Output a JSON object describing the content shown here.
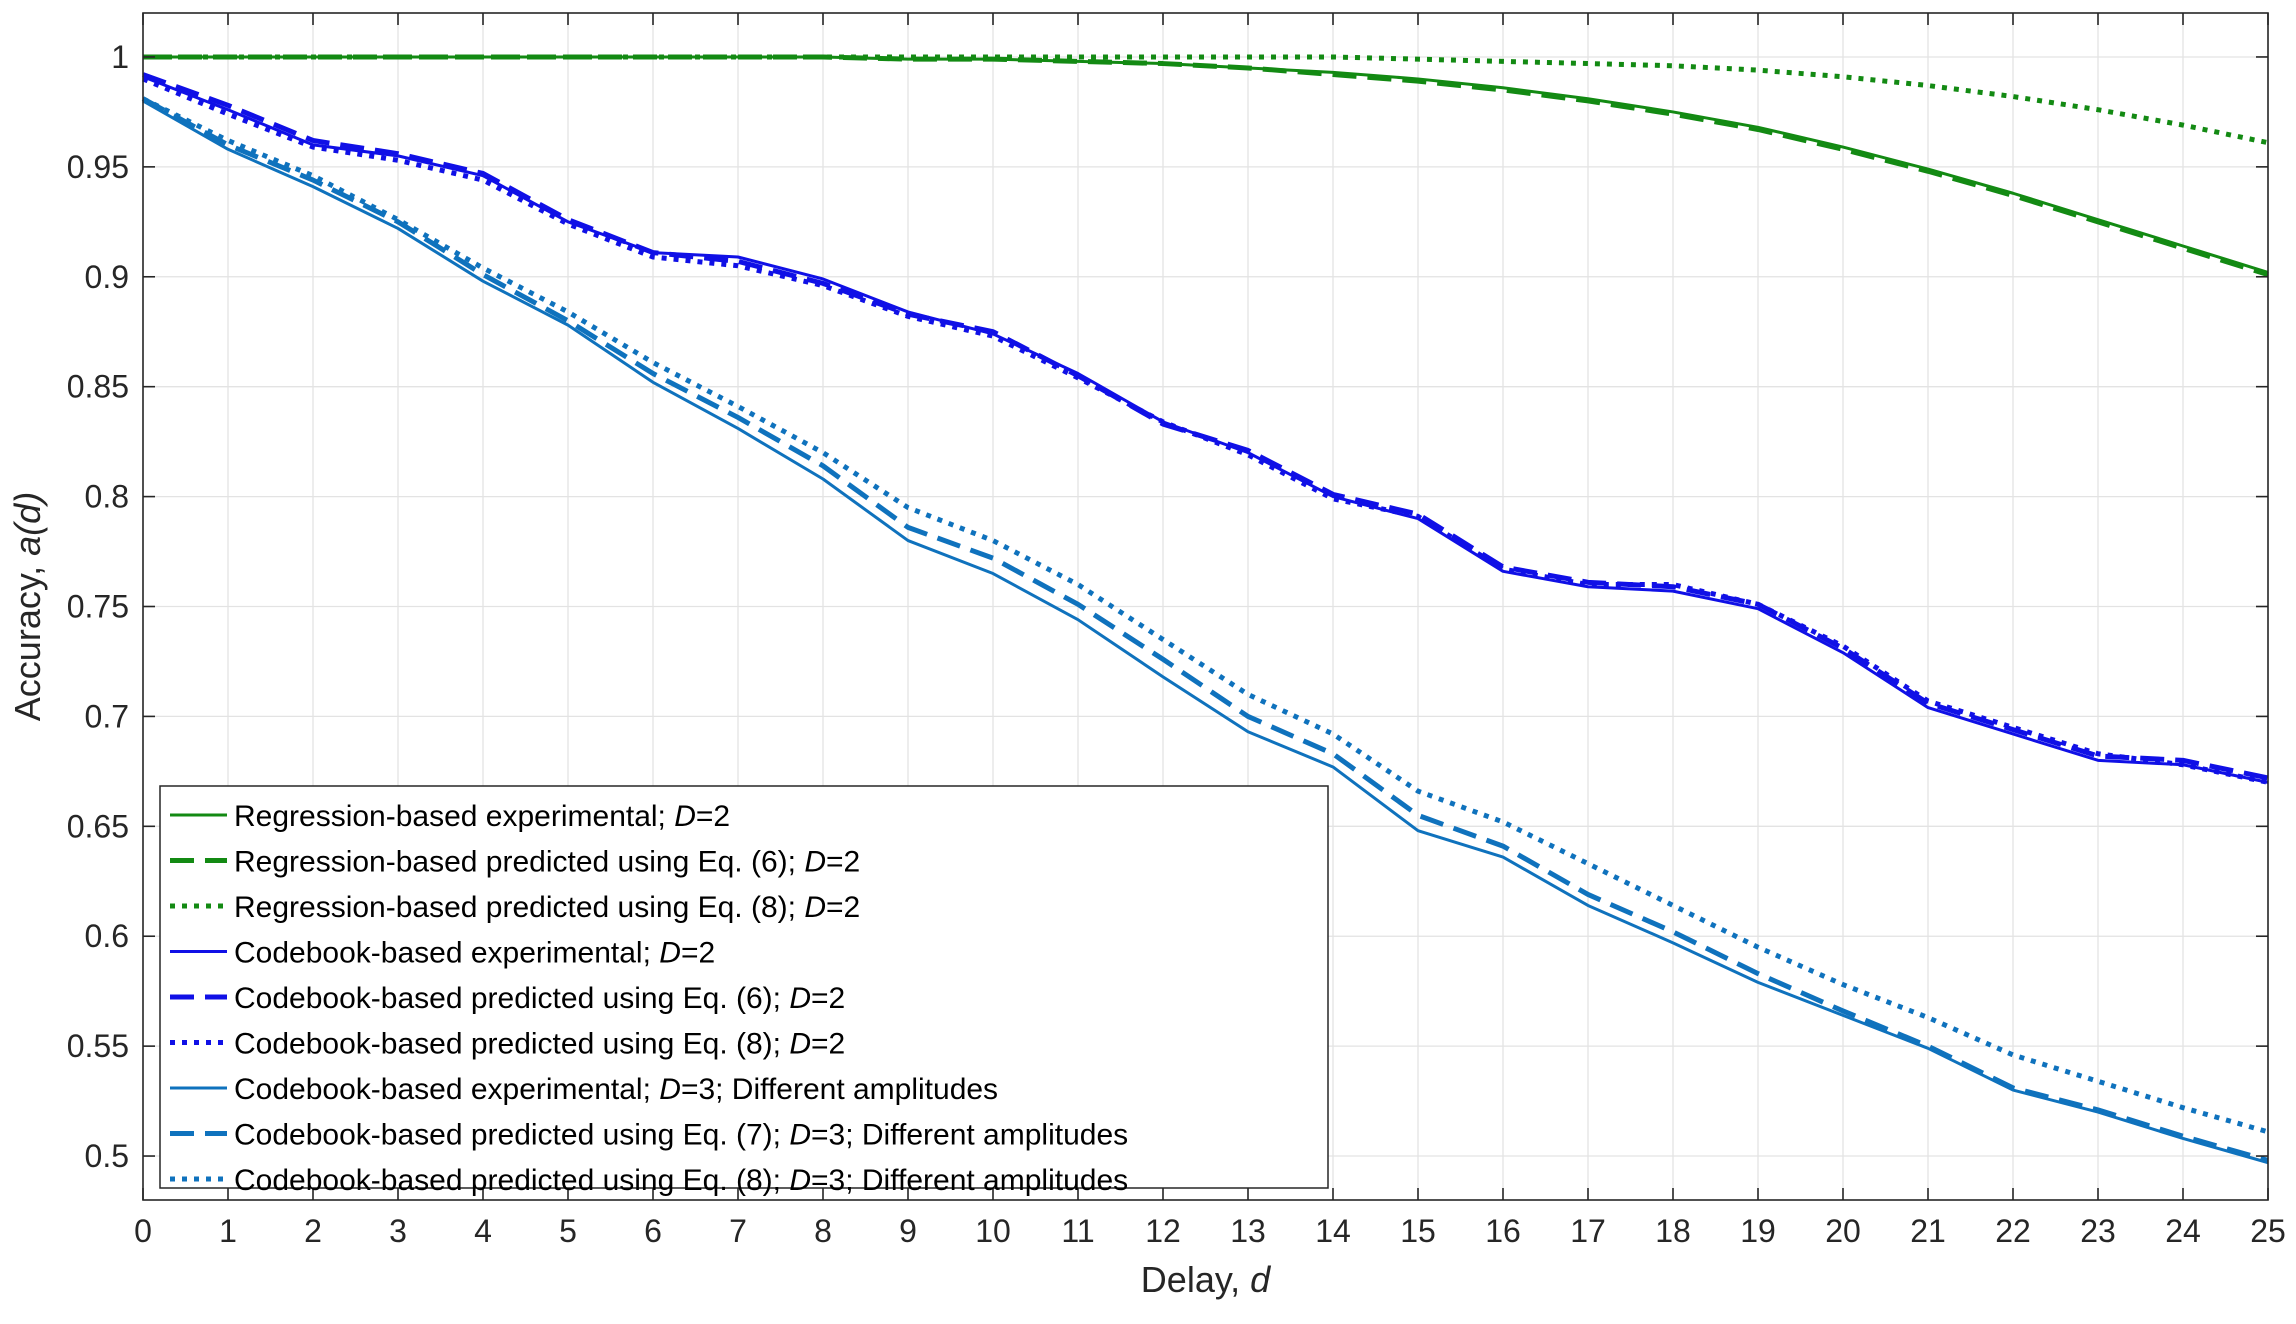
{
  "chart_data": {
    "type": "line",
    "title": "",
    "xlabel_prefix": "Delay, ",
    "xlabel_var": "d",
    "ylabel_prefix": "Accuracy, ",
    "ylabel_var": "a(d)",
    "xlim": [
      0,
      25
    ],
    "ylim": [
      0.48,
      1.02
    ],
    "xticks": [
      0,
      1,
      2,
      3,
      4,
      5,
      6,
      7,
      8,
      9,
      10,
      11,
      12,
      13,
      14,
      15,
      16,
      17,
      18,
      19,
      20,
      21,
      22,
      23,
      24,
      25
    ],
    "xtick_labels": [
      "0",
      "1",
      "2",
      "3",
      "4",
      "5",
      "6",
      "7",
      "8",
      "9",
      "10",
      "11",
      "12",
      "13",
      "14",
      "15",
      "16",
      "17",
      "18",
      "19",
      "20",
      "21",
      "22",
      "23",
      "24",
      "25"
    ],
    "yticks": [
      0.5,
      0.55,
      0.6,
      0.65,
      0.7,
      0.75,
      0.8,
      0.85,
      0.9,
      0.95,
      1
    ],
    "ytick_labels": [
      "0.5",
      "0.55",
      "0.6",
      "0.65",
      "0.7",
      "0.75",
      "0.8",
      "0.85",
      "0.9",
      "0.95",
      "1"
    ],
    "grid": true,
    "legend_position": "bottom-left",
    "x": [
      0,
      1,
      2,
      3,
      4,
      5,
      6,
      7,
      8,
      9,
      10,
      11,
      12,
      13,
      14,
      15,
      16,
      17,
      18,
      19,
      20,
      21,
      22,
      23,
      24,
      25
    ],
    "series": [
      {
        "name": "Regression-based experimental; D=2",
        "legend_parts": [
          "Regression-based experimental; ",
          "D",
          "=2"
        ],
        "color": "#138a13",
        "dash": "solid",
        "width": 3,
        "values": [
          1.0,
          1.0,
          1.0,
          1.0,
          1.0,
          1.0,
          1.0,
          1.0,
          1.0,
          0.999,
          0.999,
          0.998,
          0.997,
          0.995,
          0.993,
          0.99,
          0.986,
          0.981,
          0.975,
          0.968,
          0.959,
          0.949,
          0.938,
          0.926,
          0.914,
          0.902
        ]
      },
      {
        "name": "Regression-based predicted using Eq. (6); D=2",
        "legend_parts": [
          "Regression-based predicted using Eq. (6); ",
          "D",
          "=2"
        ],
        "color": "#138a13",
        "dash": "dash",
        "width": 5,
        "values": [
          1.0,
          1.0,
          1.0,
          1.0,
          1.0,
          1.0,
          1.0,
          1.0,
          1.0,
          0.999,
          0.999,
          0.998,
          0.997,
          0.995,
          0.992,
          0.989,
          0.985,
          0.98,
          0.974,
          0.967,
          0.958,
          0.948,
          0.937,
          0.925,
          0.913,
          0.901
        ]
      },
      {
        "name": "Regression-based predicted using Eq. (8); D=2",
        "legend_parts": [
          "Regression-based predicted using Eq. (8); ",
          "D",
          "=2"
        ],
        "color": "#138a13",
        "dash": "dot",
        "width": 5,
        "values": [
          1.0,
          1.0,
          1.0,
          1.0,
          1.0,
          1.0,
          1.0,
          1.0,
          1.0,
          1.0,
          1.0,
          1.0,
          1.0,
          1.0,
          1.0,
          0.999,
          0.998,
          0.997,
          0.996,
          0.994,
          0.991,
          0.987,
          0.982,
          0.976,
          0.969,
          0.961
        ]
      },
      {
        "name": "Codebook-based experimental; D=2",
        "legend_parts": [
          "Codebook-based experimental; ",
          "D",
          "=2"
        ],
        "color": "#1010e6",
        "dash": "solid",
        "width": 3,
        "values": [
          0.991,
          0.976,
          0.96,
          0.955,
          0.946,
          0.925,
          0.911,
          0.909,
          0.899,
          0.884,
          0.874,
          0.856,
          0.834,
          0.82,
          0.8,
          0.79,
          0.766,
          0.759,
          0.757,
          0.749,
          0.729,
          0.704,
          0.692,
          0.68,
          0.678,
          0.67
        ]
      },
      {
        "name": "Codebook-based predicted using Eq. (6); D=2",
        "legend_parts": [
          "Codebook-based predicted using Eq. (6); ",
          "D",
          "=2"
        ],
        "color": "#1010e6",
        "dash": "dash",
        "width": 5,
        "values": [
          0.992,
          0.978,
          0.962,
          0.956,
          0.947,
          0.926,
          0.911,
          0.907,
          0.897,
          0.883,
          0.875,
          0.855,
          0.833,
          0.821,
          0.801,
          0.792,
          0.768,
          0.761,
          0.759,
          0.751,
          0.731,
          0.706,
          0.694,
          0.682,
          0.68,
          0.672
        ]
      },
      {
        "name": "Codebook-based predicted using Eq. (8); D=2",
        "legend_parts": [
          "Codebook-based predicted using Eq. (8); ",
          "D",
          "=2"
        ],
        "color": "#1010e6",
        "dash": "dot",
        "width": 5,
        "values": [
          0.99,
          0.974,
          0.959,
          0.953,
          0.944,
          0.924,
          0.909,
          0.905,
          0.896,
          0.882,
          0.873,
          0.854,
          0.834,
          0.819,
          0.799,
          0.791,
          0.767,
          0.76,
          0.76,
          0.751,
          0.732,
          0.707,
          0.695,
          0.683,
          0.678,
          0.67
        ]
      },
      {
        "name": "Codebook-based experimental; D=3; Different amplitudes",
        "legend_parts": [
          "Codebook-based experimental; ",
          "D",
          "=3; Different amplitudes"
        ],
        "color": "#0f72bd",
        "dash": "solid",
        "width": 3,
        "values": [
          0.98,
          0.958,
          0.941,
          0.922,
          0.898,
          0.878,
          0.852,
          0.831,
          0.808,
          0.78,
          0.765,
          0.744,
          0.718,
          0.693,
          0.677,
          0.648,
          0.636,
          0.614,
          0.597,
          0.579,
          0.564,
          0.549,
          0.53,
          0.52,
          0.508,
          0.497
        ]
      },
      {
        "name": "Codebook-based predicted using Eq. (7); D=3; Different amplitudes",
        "legend_parts": [
          "Codebook-based predicted using Eq. (7); ",
          "D",
          "=3; Different amplitudes"
        ],
        "color": "#0f72bd",
        "dash": "dash",
        "width": 5,
        "values": [
          0.981,
          0.96,
          0.944,
          0.925,
          0.901,
          0.88,
          0.856,
          0.836,
          0.814,
          0.786,
          0.772,
          0.751,
          0.726,
          0.7,
          0.683,
          0.655,
          0.641,
          0.619,
          0.602,
          0.583,
          0.566,
          0.55,
          0.531,
          0.521,
          0.509,
          0.498
        ]
      },
      {
        "name": "Codebook-based predicted using Eq. (8); D=3; Different amplitudes",
        "legend_parts": [
          "Codebook-based predicted using Eq. (8); ",
          "D",
          "=3; Different amplitudes"
        ],
        "color": "#0f72bd",
        "dash": "dot",
        "width": 5,
        "values": [
          0.981,
          0.962,
          0.946,
          0.926,
          0.904,
          0.884,
          0.861,
          0.841,
          0.82,
          0.795,
          0.78,
          0.76,
          0.735,
          0.71,
          0.692,
          0.666,
          0.652,
          0.633,
          0.614,
          0.595,
          0.578,
          0.563,
          0.546,
          0.534,
          0.522,
          0.511
        ]
      }
    ]
  }
}
